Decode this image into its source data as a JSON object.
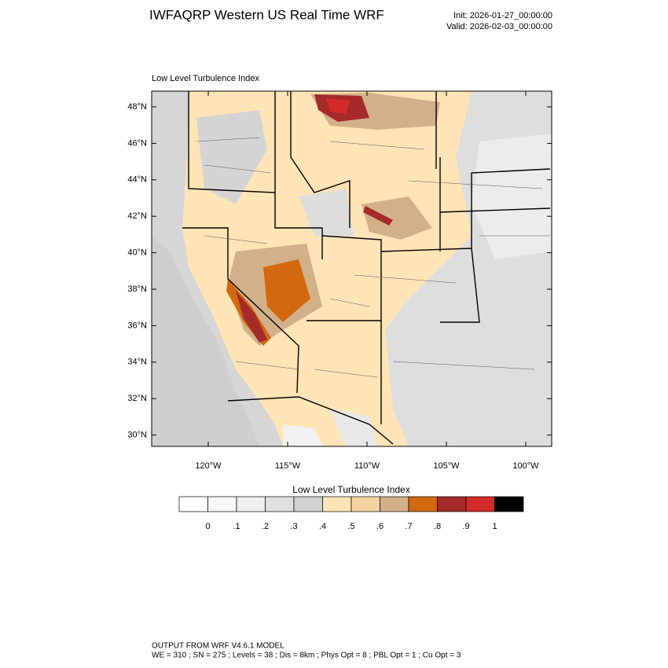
{
  "header": {
    "title": "IWFAQRP Western US Real Time WRF",
    "init": "Init: 2026-01-27_00:00:00",
    "valid": "Valid: 2026-02-03_00:00:00"
  },
  "plot": {
    "subtitle": "Low Level Turbulence Index",
    "lat_labels": [
      "48°N",
      "46°N",
      "44°N",
      "42°N",
      "40°N",
      "38°N",
      "36°N",
      "34°N",
      "32°N",
      "30°N"
    ],
    "lon_labels": [
      "120°W",
      "115°W",
      "110°W",
      "105°W",
      "100°W"
    ]
  },
  "colorbar": {
    "title": "Low Level Turbulence Index",
    "colors": [
      "#ffffff",
      "#f7f7f7",
      "#efefef",
      "#e0e0e0",
      "#d1d1d1",
      "#ffe4b5",
      "#f5d3a0",
      "#d2b08a",
      "#d2690f",
      "#a52a2a",
      "#d42a2a",
      "#000000"
    ],
    "labels": [
      "0",
      ".1",
      ".2",
      ".3",
      ".4",
      ".5",
      ".6",
      ".7",
      ".8",
      ".9",
      "1"
    ]
  },
  "footer": {
    "line1": "OUTPUT FROM WRF V4.6.1 MODEL",
    "line2": "WE = 310 ; SN = 275 ; Levels = 38 ; Dis = 8km ; Phys Opt = 8 ; PBL Opt = 1 ; Cu Opt = 3"
  }
}
